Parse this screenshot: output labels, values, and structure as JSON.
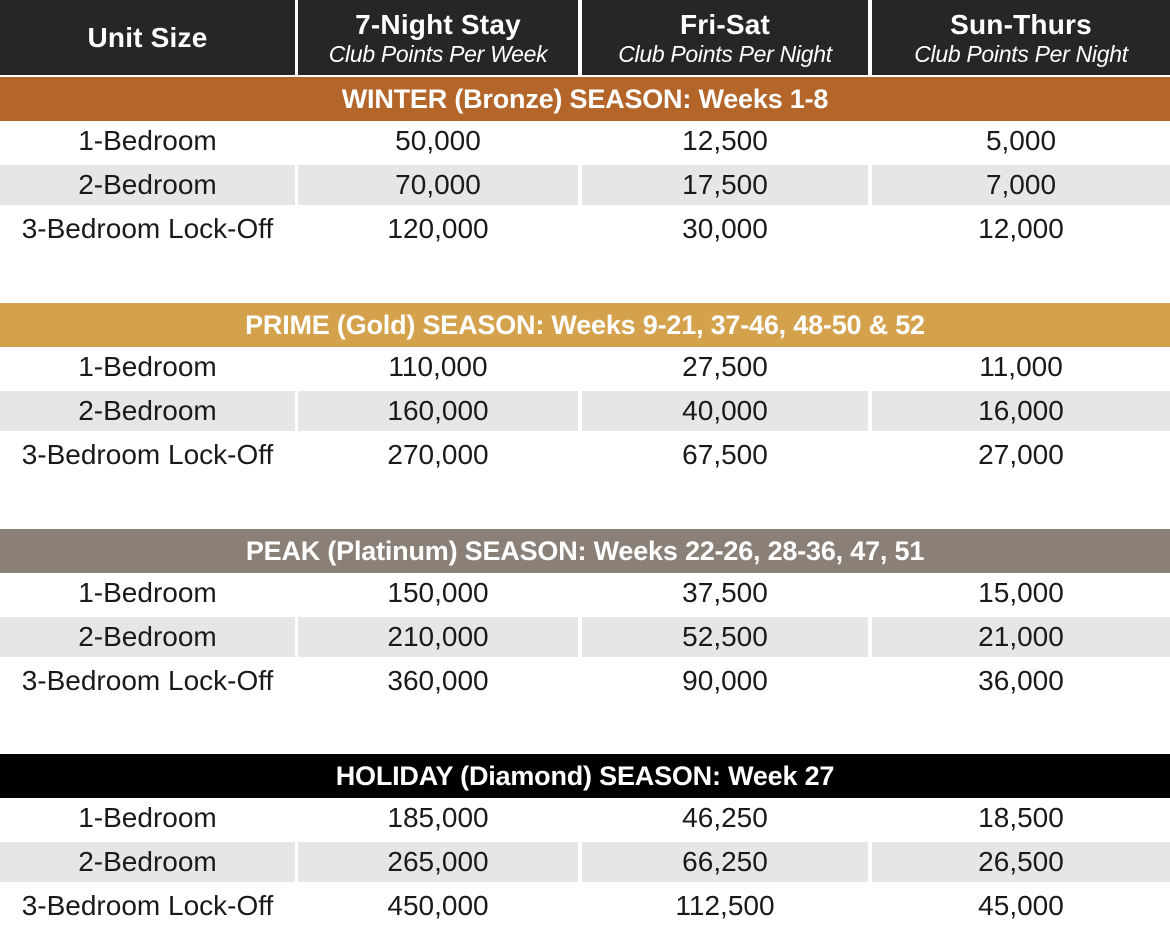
{
  "header": {
    "unit_size": "Unit Size",
    "col1": {
      "title": "7-Night Stay",
      "sub": "Club Points Per Week"
    },
    "col2": {
      "title": "Fri-Sat",
      "sub": "Club Points Per Night"
    },
    "col3": {
      "title": "Sun-Thurs",
      "sub": "Club Points Per Night"
    }
  },
  "seasons": [
    {
      "label": "WINTER (Bronze) SEASON: Weeks 1-8",
      "color": "#b3652a",
      "rows": [
        [
          "1-Bedroom",
          "50,000",
          "12,500",
          "5,000"
        ],
        [
          "2-Bedroom",
          "70,000",
          "17,500",
          "7,000"
        ],
        [
          "3-Bedroom Lock-Off",
          "120,000",
          "30,000",
          "12,000"
        ]
      ]
    },
    {
      "label": "PRIME (Gold) SEASON: Weeks 9-21, 37-46, 48-50 & 52",
      "color": "#d4a24c",
      "rows": [
        [
          "1-Bedroom",
          "110,000",
          "27,500",
          "11,000"
        ],
        [
          "2-Bedroom",
          "160,000",
          "40,000",
          "16,000"
        ],
        [
          "3-Bedroom Lock-Off",
          "270,000",
          "67,500",
          "27,000"
        ]
      ]
    },
    {
      "label": "PEAK (Platinum) SEASON: Weeks 22-26, 28-36, 47, 51",
      "color": "#8b8077",
      "rows": [
        [
          "1-Bedroom",
          "150,000",
          "37,500",
          "15,000"
        ],
        [
          "2-Bedroom",
          "210,000",
          "52,500",
          "21,000"
        ],
        [
          "3-Bedroom Lock-Off",
          "360,000",
          "90,000",
          "36,000"
        ]
      ]
    },
    {
      "label": "HOLIDAY (Diamond) SEASON: Week 27",
      "color": "#000000",
      "rows": [
        [
          "1-Bedroom",
          "185,000",
          "46,250",
          "18,500"
        ],
        [
          "2-Bedroom",
          "265,000",
          "66,250",
          "26,500"
        ],
        [
          "3-Bedroom Lock-Off",
          "450,000",
          "112,500",
          "45,000"
        ]
      ]
    }
  ]
}
